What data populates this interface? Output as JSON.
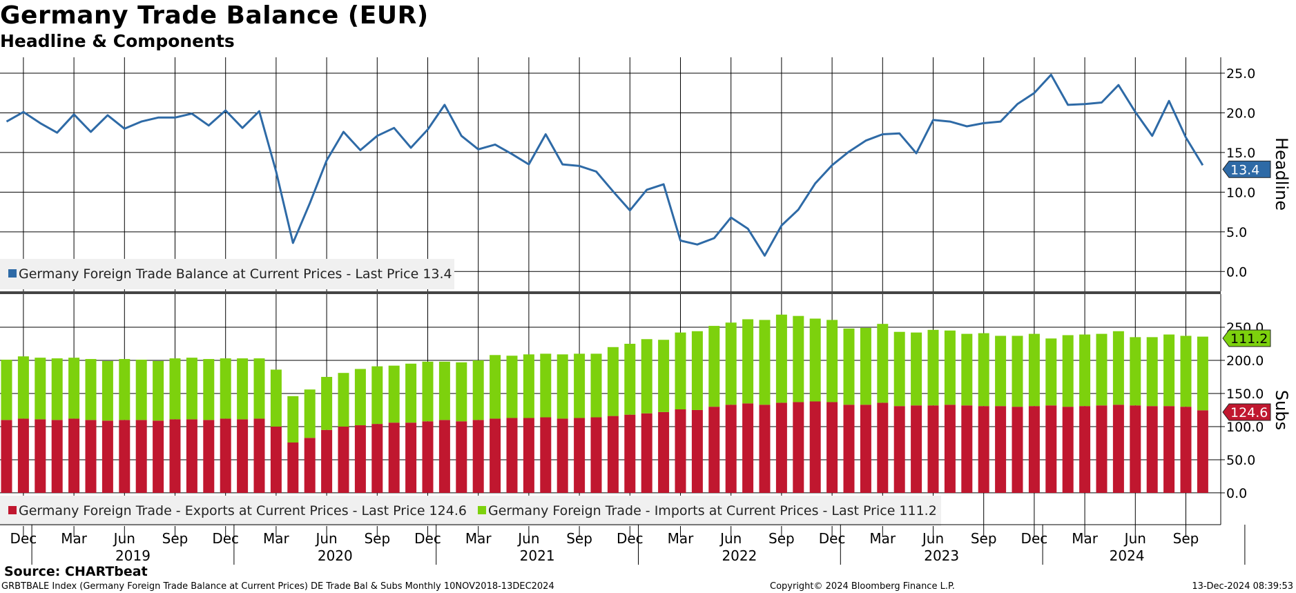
{
  "header": {
    "title": "Germany Trade Balance (EUR)",
    "subtitle": "Headline & Components"
  },
  "footer": {
    "source": "Source: CHARTbeat",
    "index_info": "GRBTBALE Index (Germany Foreign Trade Balance at Current Prices) DE Trade Bal & Subs  Monthly 10NOV2018-13DEC2024",
    "copyright": "Copyright© 2024 Bloomberg Finance L.P.",
    "timestamp": "13-Dec-2024 08:39:53"
  },
  "colors": {
    "headline": "#2e6aa6",
    "exports": "#c0172f",
    "imports": "#7dd10d",
    "grid": "#000000"
  },
  "chart_data": [
    {
      "type": "line",
      "panel": "Headline",
      "ylim": [
        -2.5,
        27
      ],
      "yticks": [
        "25.0",
        "20.0",
        "15.0",
        "10.0",
        "5.0",
        "0.0"
      ],
      "ytick_values": [
        25,
        20,
        15,
        10,
        5,
        0
      ],
      "grid": true,
      "legend_position": "bottom-left",
      "last_value_label": "13.4",
      "series": [
        {
          "name": "Germany Foreign Trade Balance at Current Prices - Last Price 13.4",
          "color": "#2e6aa6",
          "x": [
            "2018-11",
            "2018-12",
            "2019-01",
            "2019-02",
            "2019-03",
            "2019-04",
            "2019-05",
            "2019-06",
            "2019-07",
            "2019-08",
            "2019-09",
            "2019-10",
            "2019-11",
            "2019-12",
            "2020-01",
            "2020-02",
            "2020-03",
            "2020-04",
            "2020-05",
            "2020-06",
            "2020-07",
            "2020-08",
            "2020-09",
            "2020-10",
            "2020-11",
            "2020-12",
            "2021-01",
            "2021-02",
            "2021-03",
            "2021-04",
            "2021-05",
            "2021-06",
            "2021-07",
            "2021-08",
            "2021-09",
            "2021-10",
            "2021-11",
            "2021-12",
            "2022-01",
            "2022-02",
            "2022-03",
            "2022-04",
            "2022-05",
            "2022-06",
            "2022-07",
            "2022-08",
            "2022-09",
            "2022-10",
            "2022-11",
            "2022-12",
            "2023-01",
            "2023-02",
            "2023-03",
            "2023-04",
            "2023-05",
            "2023-06",
            "2023-07",
            "2023-08",
            "2023-09",
            "2023-10",
            "2023-11",
            "2023-12",
            "2024-01",
            "2024-02",
            "2024-03",
            "2024-04",
            "2024-05",
            "2024-06",
            "2024-07",
            "2024-08",
            "2024-09",
            "2024-10"
          ],
          "values": [
            18.9,
            20.1,
            18.7,
            17.5,
            19.8,
            17.6,
            19.7,
            18.0,
            18.9,
            19.4,
            19.4,
            19.9,
            18.4,
            20.3,
            18.1,
            20.2,
            12.6,
            3.6,
            8.6,
            14.0,
            17.6,
            15.3,
            17.1,
            18.1,
            15.6,
            17.9,
            21.0,
            17.1,
            15.4,
            16.0,
            14.8,
            13.5,
            17.3,
            13.5,
            13.3,
            12.6,
            10.1,
            7.7,
            10.3,
            11.0,
            3.9,
            3.4,
            4.2,
            6.8,
            5.4,
            2.0,
            5.8,
            7.8,
            11.1,
            13.4,
            15.1,
            16.5,
            17.3,
            17.4,
            14.9,
            19.1,
            18.9,
            18.3,
            18.7,
            18.9,
            21.1,
            22.5,
            24.8,
            21.0,
            21.1,
            21.3,
            23.5,
            20.1,
            17.1,
            21.5,
            16.9,
            13.4
          ]
        }
      ]
    },
    {
      "type": "bar",
      "panel": "Subs",
      "stacked": true,
      "ylim": [
        -48,
        300
      ],
      "yticks": [
        "250.0",
        "200.0",
        "150.0",
        "100.0",
        "50.0",
        "0.0"
      ],
      "ytick_values": [
        250,
        200,
        150,
        100,
        50,
        0
      ],
      "grid": true,
      "legend_position": "bottom-left",
      "series": [
        {
          "name": "Germany Foreign Trade - Exports at Current Prices - Last Price 124.6",
          "color": "#c0172f",
          "last_value_label": "124.6",
          "values": [
            110,
            112,
            111,
            110,
            112,
            110,
            109,
            110,
            110,
            109,
            111,
            111,
            110,
            112,
            111,
            112,
            100,
            76,
            83,
            95,
            100,
            102,
            104,
            106,
            106,
            108,
            110,
            108,
            110,
            112,
            113,
            113,
            114,
            112,
            113,
            114,
            116,
            118,
            120,
            122,
            126,
            125,
            130,
            133,
            135,
            133,
            136,
            137,
            138,
            137,
            133,
            133,
            136,
            131,
            132,
            132,
            133,
            132,
            131,
            131,
            130,
            131,
            132,
            130,
            131,
            132,
            133,
            132,
            131,
            131,
            130,
            124.6
          ]
        },
        {
          "name": "Germany Foreign Trade - Imports at Current Prices - Last Price 111.2",
          "color": "#7dd10d",
          "last_value_label": "111.2",
          "values": [
            91,
            94,
            93,
            93,
            92,
            92,
            90,
            92,
            91,
            90,
            92,
            93,
            92,
            91,
            92,
            91,
            86,
            70,
            73,
            80,
            81,
            85,
            87,
            86,
            89,
            90,
            88,
            89,
            90,
            96,
            94,
            96,
            96,
            97,
            97,
            96,
            104,
            107,
            112,
            109,
            116,
            119,
            122,
            124,
            127,
            128,
            133,
            130,
            125,
            124,
            115,
            116,
            119,
            112,
            110,
            114,
            112,
            108,
            110,
            106,
            107,
            109,
            101,
            108,
            108,
            108,
            111,
            103,
            104,
            108,
            107,
            111.2
          ]
        }
      ]
    }
  ],
  "x_axis": {
    "month_labels": [
      "Dec",
      "Mar",
      "Jun",
      "Sep",
      "Dec",
      "Mar",
      "Jun",
      "Sep",
      "Dec",
      "Mar",
      "Jun",
      "Sep",
      "Dec",
      "Mar",
      "Jun",
      "Sep",
      "Dec",
      "Mar",
      "Jun",
      "Sep",
      "Dec",
      "Mar",
      "Jun",
      "Sep"
    ],
    "year_labels": [
      "2019",
      "2020",
      "2021",
      "2022",
      "2023",
      "2024"
    ]
  },
  "axis_titles": {
    "top": "Headline",
    "bottom": "Subs"
  }
}
